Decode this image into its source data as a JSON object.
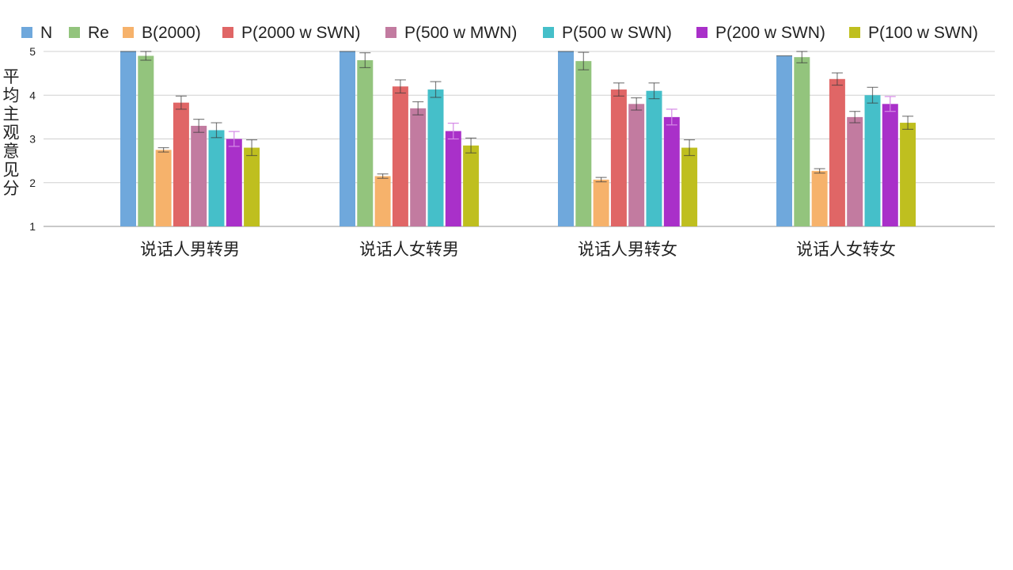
{
  "chart_data": {
    "type": "bar",
    "title": "",
    "xlabel": "",
    "ylabel": "平均主观意见分",
    "ylim": [
      1,
      5
    ],
    "yticks": [
      1,
      2,
      3,
      4,
      5
    ],
    "grid": true,
    "legend_position": "top",
    "categories": [
      "说话人男转男",
      "说话人女转男",
      "说话人男转女",
      "说话人女转女"
    ],
    "series": [
      {
        "name": "N",
        "color": "#6fa8dc",
        "values": [
          5.0,
          5.0,
          5.0,
          4.9
        ],
        "errors": [
          0.0,
          0.0,
          0.0,
          0.0
        ]
      },
      {
        "name": "Re",
        "color": "#93c47d",
        "values": [
          4.9,
          4.8,
          4.78,
          4.87
        ],
        "errors": [
          0.1,
          0.17,
          0.2,
          0.13
        ]
      },
      {
        "name": "B(2000)",
        "color": "#f6b26b",
        "values": [
          2.75,
          2.15,
          2.07,
          2.27
        ],
        "errors": [
          0.05,
          0.05,
          0.05,
          0.05
        ]
      },
      {
        "name": "P(2000 w SWN)",
        "color": "#e06666",
        "values": [
          3.83,
          4.2,
          4.13,
          4.37
        ],
        "errors": [
          0.15,
          0.15,
          0.15,
          0.14
        ]
      },
      {
        "name": "P(500 w MWN)",
        "color": "#c27ba0",
        "values": [
          3.3,
          3.7,
          3.8,
          3.5
        ],
        "errors": [
          0.15,
          0.15,
          0.14,
          0.13
        ]
      },
      {
        "name": "P(500 w SWN)",
        "color": "#45bfc9",
        "values": [
          3.2,
          4.13,
          4.1,
          4.0
        ],
        "errors": [
          0.17,
          0.18,
          0.18,
          0.18
        ]
      },
      {
        "name": "P(200 w SWN)",
        "color": "#a930c9",
        "values": [
          3.0,
          3.18,
          3.5,
          3.8
        ],
        "errors": [
          0.17,
          0.18,
          0.18,
          0.17
        ]
      },
      {
        "name": "P(100 w SWN)",
        "color": "#bfbf1f",
        "values": [
          2.8,
          2.85,
          2.8,
          3.37
        ],
        "errors": [
          0.18,
          0.17,
          0.18,
          0.15
        ]
      }
    ]
  }
}
